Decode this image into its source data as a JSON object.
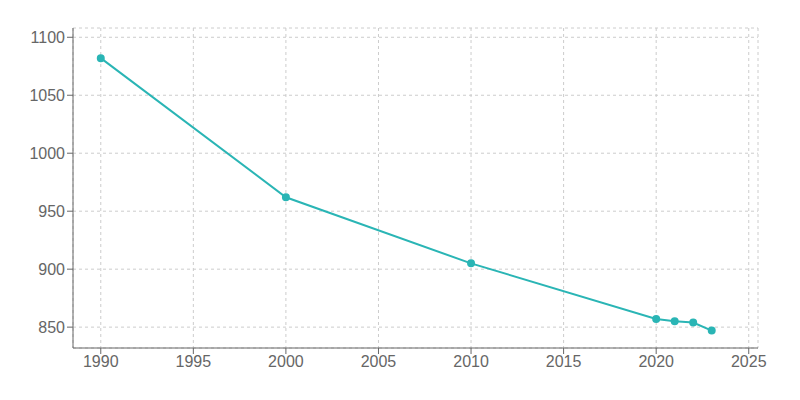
{
  "chart_data": {
    "type": "line",
    "x": [
      1990,
      2000,
      2010,
      2020,
      2021,
      2022,
      2023
    ],
    "values": [
      1082,
      962,
      905,
      857,
      855,
      854,
      847
    ],
    "color": "#2ab5b5",
    "marker": "circle",
    "xlim": [
      1988.5,
      2025.5
    ],
    "xticks": [
      1990,
      1995,
      2000,
      2005,
      2010,
      2015,
      2020,
      2025
    ],
    "ylim": [
      832,
      1108
    ],
    "yticks": [
      850,
      900,
      950,
      1000,
      1050,
      1100
    ],
    "grid": true
  }
}
